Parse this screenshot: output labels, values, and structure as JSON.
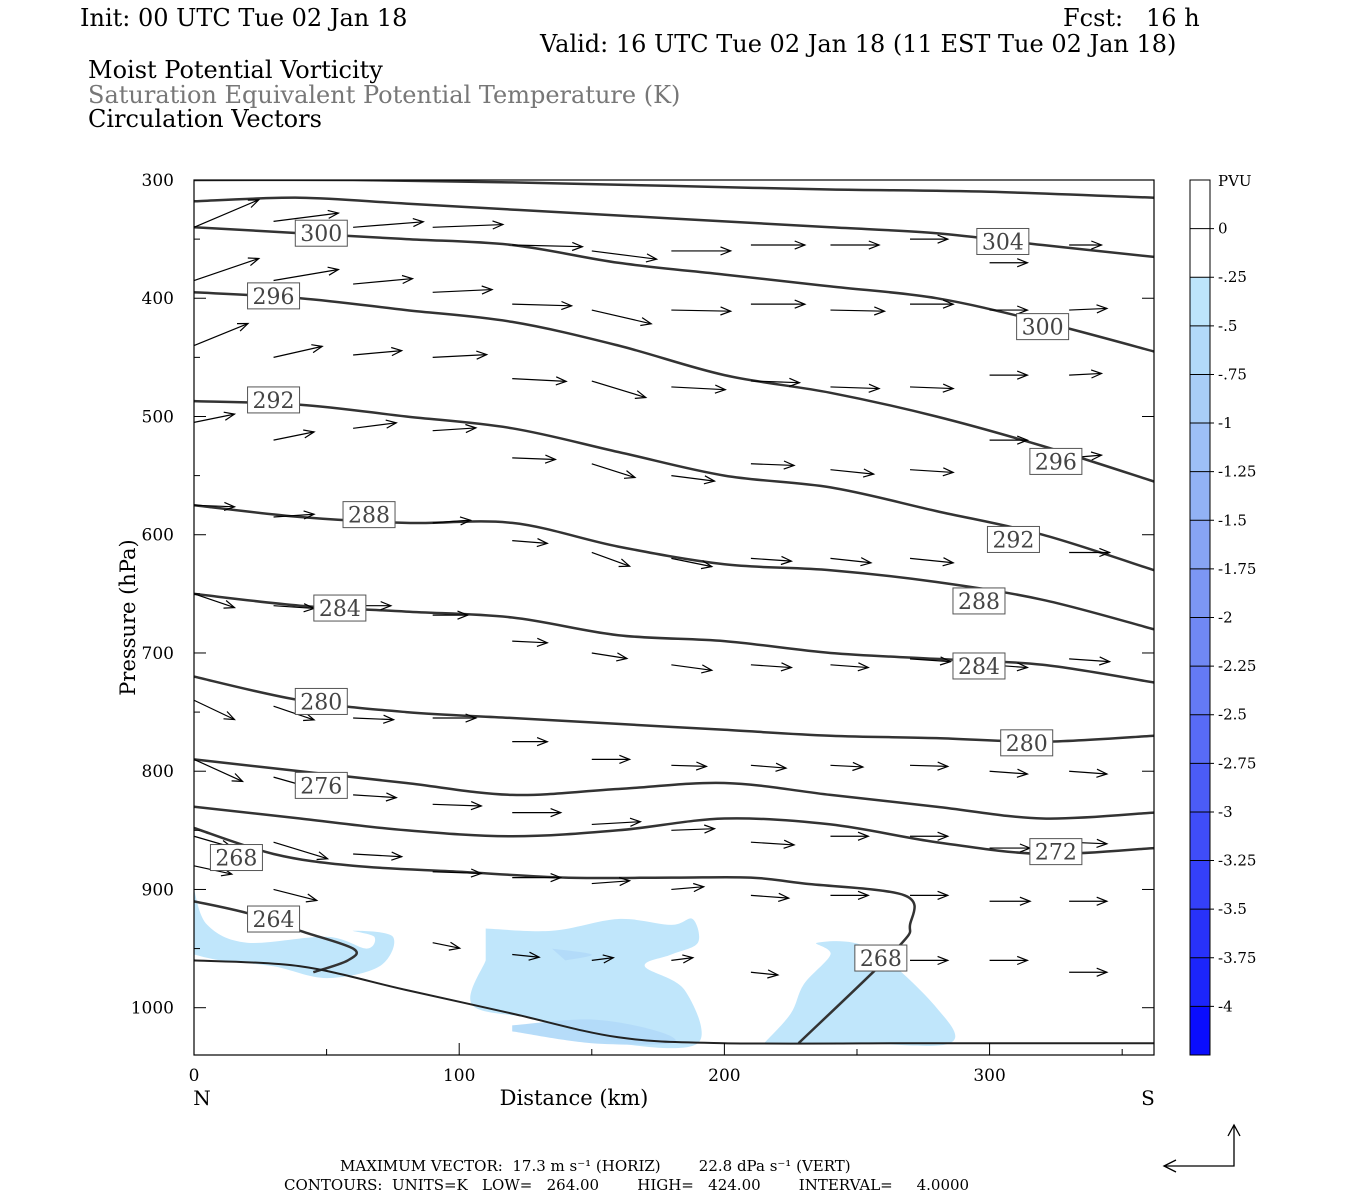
{
  "header": {
    "init": "Init: 00 UTC Tue 02 Jan 18",
    "fcst": "Fcst:   16 h",
    "valid": "Valid: 16 UTC Tue 02 Jan 18 (11 EST Tue 02 Jan 18)",
    "field1": "Moist Potential Vorticity",
    "field2": "Saturation Equivalent Potential Temperature (K)",
    "field3": "Circulation Vectors"
  },
  "footer": {
    "max_vector": "MAXIMUM VECTOR:  17.3 m s⁻¹ (HORIZ)        22.8 dPa s⁻¹ (VERT)",
    "contours": "CONTOURS:  UNITS=K   LOW=   264.00        HIGH=   424.00        INTERVAL=     4.0000"
  },
  "chart_data": {
    "type": "cross-section",
    "xlabel": "Distance (km)",
    "ylabel": "Pressure (hPa)",
    "xlim": [
      0,
      362
    ],
    "ylim": [
      1040,
      300
    ],
    "x_ticks": [
      "0",
      "100",
      "200",
      "300"
    ],
    "x_tick_values": [
      0,
      100,
      200,
      300
    ],
    "y_ticks": [
      "300",
      "400",
      "500",
      "600",
      "700",
      "800",
      "900",
      "1000"
    ],
    "y_tick_values": [
      300,
      400,
      500,
      600,
      700,
      800,
      900,
      1000
    ],
    "end_labels": {
      "left": "N",
      "right": "S"
    },
    "colorbar": {
      "title": "PVU",
      "labels": [
        "0",
        "-.25",
        "-.5",
        "-.75",
        "-1",
        "-1.25",
        "-1.5",
        "-1.75",
        "-2",
        "-2.25",
        "-2.5",
        "-2.75",
        "-3",
        "-3.25",
        "-3.5",
        "-3.75",
        "-4"
      ],
      "colors": [
        "#ffffff",
        "#ffffff",
        "#bde5fb",
        "#b2daf9",
        "#a8cdf7",
        "#9dbff6",
        "#92b2f5",
        "#87a4f4",
        "#7c96f4",
        "#7088f4",
        "#647af5",
        "#586bf6",
        "#4b5cf7",
        "#3f4df8",
        "#3440f9",
        "#2832fa",
        "#1c25fb",
        "#0a0dfd"
      ]
    },
    "contours": [
      {
        "label": "264",
        "x": [
          0,
          20,
          40,
          60,
          58,
          45
        ],
        "p": [
          910,
          920,
          935,
          950,
          960,
          970
        ]
      },
      {
        "label": "268",
        "x": [
          0,
          30,
          60,
          100,
          140,
          180,
          210,
          230,
          268,
          270,
          265,
          228
        ],
        "p": [
          848,
          870,
          880,
          885,
          890,
          890,
          890,
          895,
          905,
          930,
          950,
          1030
        ]
      },
      {
        "label": "272",
        "x": [
          0,
          40,
          80,
          120,
          160,
          200,
          240,
          280,
          320,
          362
        ],
        "p": [
          830,
          840,
          850,
          855,
          850,
          840,
          845,
          860,
          870,
          865
        ]
      },
      {
        "label": "276",
        "x": [
          0,
          40,
          80,
          120,
          160,
          200,
          240,
          280,
          320,
          362
        ],
        "p": [
          790,
          800,
          810,
          820,
          815,
          810,
          820,
          830,
          840,
          835
        ]
      },
      {
        "label": "280",
        "x": [
          0,
          40,
          80,
          120,
          160,
          200,
          240,
          280,
          320,
          362
        ],
        "p": [
          720,
          740,
          750,
          755,
          760,
          765,
          770,
          772,
          775,
          770
        ]
      },
      {
        "label": "284",
        "x": [
          0,
          40,
          80,
          120,
          160,
          200,
          240,
          280,
          320,
          362
        ],
        "p": [
          650,
          660,
          665,
          670,
          685,
          690,
          700,
          705,
          710,
          725
        ]
      },
      {
        "label": "288",
        "x": [
          0,
          40,
          80,
          120,
          160,
          200,
          240,
          280,
          320,
          362
        ],
        "p": [
          575,
          585,
          590,
          590,
          610,
          625,
          630,
          640,
          655,
          680
        ]
      },
      {
        "label": "292",
        "x": [
          0,
          40,
          80,
          120,
          160,
          200,
          240,
          280,
          320,
          362
        ],
        "p": [
          487,
          490,
          500,
          510,
          530,
          550,
          560,
          580,
          600,
          630
        ]
      },
      {
        "label": "296",
        "x": [
          0,
          40,
          80,
          120,
          160,
          200,
          240,
          280,
          320,
          362
        ],
        "p": [
          395,
          400,
          410,
          420,
          440,
          465,
          480,
          500,
          525,
          555
        ]
      },
      {
        "label": "300",
        "x": [
          0,
          40,
          80,
          120,
          160,
          200,
          240,
          280,
          320,
          362
        ],
        "p": [
          340,
          345,
          350,
          355,
          370,
          380,
          390,
          400,
          420,
          445
        ]
      },
      {
        "label": "304",
        "x": [
          0,
          40,
          80,
          120,
          160,
          200,
          240,
          280,
          320,
          362
        ],
        "p": [
          318,
          315,
          320,
          325,
          330,
          335,
          340,
          345,
          355,
          365
        ]
      },
      {
        "label": "",
        "x": [
          0,
          60,
          120,
          180,
          240,
          300,
          362
        ],
        "p": [
          300,
          300,
          302,
          305,
          308,
          310,
          315
        ]
      }
    ],
    "contour_labels": [
      {
        "text": "300",
        "x": 48,
        "p": 345
      },
      {
        "text": "304",
        "x": 305,
        "p": 352
      },
      {
        "text": "296",
        "x": 30,
        "p": 398
      },
      {
        "text": "300",
        "x": 320,
        "p": 424
      },
      {
        "text": "292",
        "x": 30,
        "p": 486
      },
      {
        "text": "296",
        "x": 325,
        "p": 538
      },
      {
        "text": "288",
        "x": 66,
        "p": 583
      },
      {
        "text": "292",
        "x": 309,
        "p": 604
      },
      {
        "text": "284",
        "x": 55,
        "p": 662
      },
      {
        "text": "288",
        "x": 296,
        "p": 656
      },
      {
        "text": "284",
        "x": 296,
        "p": 711
      },
      {
        "text": "280",
        "x": 48,
        "p": 741
      },
      {
        "text": "280",
        "x": 314,
        "p": 776
      },
      {
        "text": "276",
        "x": 48,
        "p": 812
      },
      {
        "text": "272",
        "x": 325,
        "p": 868
      },
      {
        "text": "268",
        "x": 16,
        "p": 873
      },
      {
        "text": "264",
        "x": 30,
        "p": 925
      },
      {
        "text": "268",
        "x": 259,
        "p": 958
      }
    ],
    "pv_regions": [
      {
        "value": -0.25,
        "x": [
          0,
          5,
          20,
          50,
          65,
          68,
          60,
          75,
          70,
          50,
          30,
          10,
          0
        ],
        "p": [
          900,
          930,
          945,
          940,
          950,
          940,
          935,
          940,
          965,
          975,
          965,
          960,
          955
        ]
      },
      {
        "value": -0.25,
        "x": [
          110,
          135,
          160,
          180,
          188,
          190,
          180,
          170,
          185,
          190,
          160,
          130,
          105,
          110
        ],
        "p": [
          933,
          935,
          925,
          930,
          925,
          945,
          955,
          965,
          985,
          1030,
          1030,
          1010,
          998,
          960
        ]
      },
      {
        "value": -0.25,
        "x": [
          215,
          225,
          230,
          240,
          235,
          255,
          280,
          285,
          250,
          215
        ],
        "p": [
          1030,
          1005,
          980,
          955,
          945,
          950,
          1000,
          1030,
          1030,
          1030
        ]
      },
      {
        "value": -0.5,
        "x": [
          120,
          150,
          175,
          180,
          150,
          120
        ],
        "p": [
          1015,
          1010,
          1020,
          1030,
          1030,
          1020
        ]
      },
      {
        "value": -0.5,
        "x": [
          135,
          150,
          140
        ],
        "p": [
          950,
          955,
          960
        ]
      }
    ],
    "vectors": [
      {
        "x": 0,
        "p": 340,
        "u": 24,
        "v": -50
      },
      {
        "x": 0,
        "p": 385,
        "u": 24,
        "v": -40
      },
      {
        "x": 0,
        "p": 440,
        "u": 20,
        "v": -40
      },
      {
        "x": 0,
        "p": 505,
        "u": 15,
        "v": -15
      },
      {
        "x": 0,
        "p": 575,
        "u": 15,
        "v": 3
      },
      {
        "x": 0,
        "p": 650,
        "u": 15,
        "v": 25
      },
      {
        "x": 0,
        "p": 740,
        "u": 15,
        "v": 35
      },
      {
        "x": 0,
        "p": 790,
        "u": 18,
        "v": 40
      },
      {
        "x": 0,
        "p": 855,
        "u": 14,
        "v": 20
      },
      {
        "x": 0,
        "p": 880,
        "u": 14,
        "v": 15
      },
      {
        "x": 30,
        "p": 335,
        "u": 24,
        "v": -15
      },
      {
        "x": 30,
        "p": 385,
        "u": 24,
        "v": -20
      },
      {
        "x": 30,
        "p": 450,
        "u": 18,
        "v": -20
      },
      {
        "x": 30,
        "p": 520,
        "u": 15,
        "v": -15
      },
      {
        "x": 30,
        "p": 585,
        "u": 15,
        "v": -5
      },
      {
        "x": 30,
        "p": 660,
        "u": 15,
        "v": 5
      },
      {
        "x": 30,
        "p": 745,
        "u": 15,
        "v": 25
      },
      {
        "x": 30,
        "p": 805,
        "u": 18,
        "v": 25
      },
      {
        "x": 30,
        "p": 860,
        "u": 20,
        "v": 30
      },
      {
        "x": 30,
        "p": 900,
        "u": 16,
        "v": 20
      },
      {
        "x": 60,
        "p": 340,
        "u": 26,
        "v": -10
      },
      {
        "x": 60,
        "p": 388,
        "u": 22,
        "v": -10
      },
      {
        "x": 60,
        "p": 448,
        "u": 18,
        "v": -8
      },
      {
        "x": 60,
        "p": 510,
        "u": 16,
        "v": -10
      },
      {
        "x": 60,
        "p": 660,
        "u": 14,
        "v": 0
      },
      {
        "x": 60,
        "p": 755,
        "u": 15,
        "v": 3
      },
      {
        "x": 60,
        "p": 820,
        "u": 16,
        "v": 5
      },
      {
        "x": 60,
        "p": 870,
        "u": 18,
        "v": 5
      },
      {
        "x": 90,
        "p": 340,
        "u": 26,
        "v": -5
      },
      {
        "x": 90,
        "p": 395,
        "u": 22,
        "v": -5
      },
      {
        "x": 90,
        "p": 450,
        "u": 20,
        "v": -5
      },
      {
        "x": 90,
        "p": 512,
        "u": 16,
        "v": -5
      },
      {
        "x": 90,
        "p": 590,
        "u": 14,
        "v": -5
      },
      {
        "x": 90,
        "p": 668,
        "u": 13,
        "v": 0
      },
      {
        "x": 90,
        "p": 755,
        "u": 16,
        "v": 0
      },
      {
        "x": 90,
        "p": 828,
        "u": 18,
        "v": 3
      },
      {
        "x": 90,
        "p": 885,
        "u": 18,
        "v": 3
      },
      {
        "x": 90,
        "p": 945,
        "u": 10,
        "v": 10
      },
      {
        "x": 120,
        "p": 355,
        "u": 26,
        "v": 3
      },
      {
        "x": 120,
        "p": 405,
        "u": 22,
        "v": 3
      },
      {
        "x": 120,
        "p": 468,
        "u": 20,
        "v": 5
      },
      {
        "x": 120,
        "p": 535,
        "u": 16,
        "v": 3
      },
      {
        "x": 120,
        "p": 605,
        "u": 13,
        "v": 5
      },
      {
        "x": 120,
        "p": 690,
        "u": 13,
        "v": 3
      },
      {
        "x": 120,
        "p": 775,
        "u": 13,
        "v": 0
      },
      {
        "x": 120,
        "p": 835,
        "u": 18,
        "v": 0
      },
      {
        "x": 120,
        "p": 890,
        "u": 18,
        "v": 0
      },
      {
        "x": 120,
        "p": 955,
        "u": 10,
        "v": 5
      },
      {
        "x": 150,
        "p": 360,
        "u": 24,
        "v": 15
      },
      {
        "x": 150,
        "p": 410,
        "u": 22,
        "v": 25
      },
      {
        "x": 150,
        "p": 470,
        "u": 20,
        "v": 30
      },
      {
        "x": 150,
        "p": 540,
        "u": 16,
        "v": 25
      },
      {
        "x": 150,
        "p": 615,
        "u": 14,
        "v": 25
      },
      {
        "x": 150,
        "p": 700,
        "u": 13,
        "v": 10
      },
      {
        "x": 150,
        "p": 790,
        "u": 14,
        "v": 0
      },
      {
        "x": 150,
        "p": 845,
        "u": 18,
        "v": -5
      },
      {
        "x": 150,
        "p": 895,
        "u": 14,
        "v": -5
      },
      {
        "x": 150,
        "p": 960,
        "u": 8,
        "v": -5
      },
      {
        "x": 180,
        "p": 360,
        "u": 22,
        "v": 0
      },
      {
        "x": 180,
        "p": 410,
        "u": 22,
        "v": 2
      },
      {
        "x": 180,
        "p": 475,
        "u": 20,
        "v": 5
      },
      {
        "x": 180,
        "p": 550,
        "u": 16,
        "v": 10
      },
      {
        "x": 180,
        "p": 620,
        "u": 15,
        "v": 15
      },
      {
        "x": 180,
        "p": 710,
        "u": 15,
        "v": 10
      },
      {
        "x": 180,
        "p": 795,
        "u": 13,
        "v": 2
      },
      {
        "x": 180,
        "p": 850,
        "u": 16,
        "v": -3
      },
      {
        "x": 180,
        "p": 900,
        "u": 12,
        "v": -5
      },
      {
        "x": 180,
        "p": 960,
        "u": 8,
        "v": -5
      },
      {
        "x": 210,
        "p": 355,
        "u": 20,
        "v": 0
      },
      {
        "x": 210,
        "p": 405,
        "u": 20,
        "v": 0
      },
      {
        "x": 210,
        "p": 470,
        "u": 18,
        "v": 3
      },
      {
        "x": 210,
        "p": 540,
        "u": 16,
        "v": 3
      },
      {
        "x": 210,
        "p": 620,
        "u": 15,
        "v": 5
      },
      {
        "x": 210,
        "p": 710,
        "u": 15,
        "v": 5
      },
      {
        "x": 210,
        "p": 795,
        "u": 13,
        "v": 5
      },
      {
        "x": 210,
        "p": 860,
        "u": 16,
        "v": 5
      },
      {
        "x": 210,
        "p": 905,
        "u": 14,
        "v": 5
      },
      {
        "x": 210,
        "p": 970,
        "u": 10,
        "v": 5
      },
      {
        "x": 240,
        "p": 355,
        "u": 18,
        "v": 0
      },
      {
        "x": 240,
        "p": 410,
        "u": 20,
        "v": 2
      },
      {
        "x": 240,
        "p": 475,
        "u": 18,
        "v": 3
      },
      {
        "x": 240,
        "p": 545,
        "u": 16,
        "v": 8
      },
      {
        "x": 240,
        "p": 620,
        "u": 15,
        "v": 8
      },
      {
        "x": 240,
        "p": 710,
        "u": 14,
        "v": 5
      },
      {
        "x": 240,
        "p": 795,
        "u": 12,
        "v": 3
      },
      {
        "x": 240,
        "p": 855,
        "u": 14,
        "v": 0
      },
      {
        "x": 240,
        "p": 905,
        "u": 14,
        "v": 0
      },
      {
        "x": 270,
        "p": 350,
        "u": 14,
        "v": 0
      },
      {
        "x": 270,
        "p": 405,
        "u": 16,
        "v": 0
      },
      {
        "x": 270,
        "p": 475,
        "u": 16,
        "v": 3
      },
      {
        "x": 270,
        "p": 545,
        "u": 16,
        "v": 5
      },
      {
        "x": 270,
        "p": 620,
        "u": 16,
        "v": 8
      },
      {
        "x": 270,
        "p": 705,
        "u": 15,
        "v": 5
      },
      {
        "x": 270,
        "p": 795,
        "u": 14,
        "v": 2
      },
      {
        "x": 270,
        "p": 855,
        "u": 14,
        "v": 0
      },
      {
        "x": 270,
        "p": 905,
        "u": 14,
        "v": 0
      },
      {
        "x": 270,
        "p": 960,
        "u": 14,
        "v": 0
      },
      {
        "x": 300,
        "p": 370,
        "u": 14,
        "v": 0
      },
      {
        "x": 300,
        "p": 410,
        "u": 14,
        "v": 0
      },
      {
        "x": 300,
        "p": 465,
        "u": 14,
        "v": 0
      },
      {
        "x": 300,
        "p": 520,
        "u": 14,
        "v": 0
      },
      {
        "x": 300,
        "p": 605,
        "u": 14,
        "v": 0
      },
      {
        "x": 300,
        "p": 710,
        "u": 14,
        "v": 5
      },
      {
        "x": 300,
        "p": 800,
        "u": 14,
        "v": 5
      },
      {
        "x": 300,
        "p": 865,
        "u": 15,
        "v": 0
      },
      {
        "x": 300,
        "p": 910,
        "u": 15,
        "v": 0
      },
      {
        "x": 300,
        "p": 960,
        "u": 14,
        "v": 0
      },
      {
        "x": 330,
        "p": 355,
        "u": 12,
        "v": 0
      },
      {
        "x": 330,
        "p": 410,
        "u": 14,
        "v": -3
      },
      {
        "x": 330,
        "p": 465,
        "u": 12,
        "v": -3
      },
      {
        "x": 330,
        "p": 535,
        "u": 12,
        "v": -5
      },
      {
        "x": 330,
        "p": 615,
        "u": 15,
        "v": 0
      },
      {
        "x": 330,
        "p": 705,
        "u": 15,
        "v": 5
      },
      {
        "x": 330,
        "p": 800,
        "u": 14,
        "v": 5
      },
      {
        "x": 330,
        "p": 860,
        "u": 14,
        "v": 3
      },
      {
        "x": 330,
        "p": 910,
        "u": 14,
        "v": 0
      },
      {
        "x": 330,
        "p": 970,
        "u": 14,
        "v": 0
      }
    ]
  },
  "reference_vector": {
    "description": "MAXIMUM VECTOR reference arrow"
  }
}
